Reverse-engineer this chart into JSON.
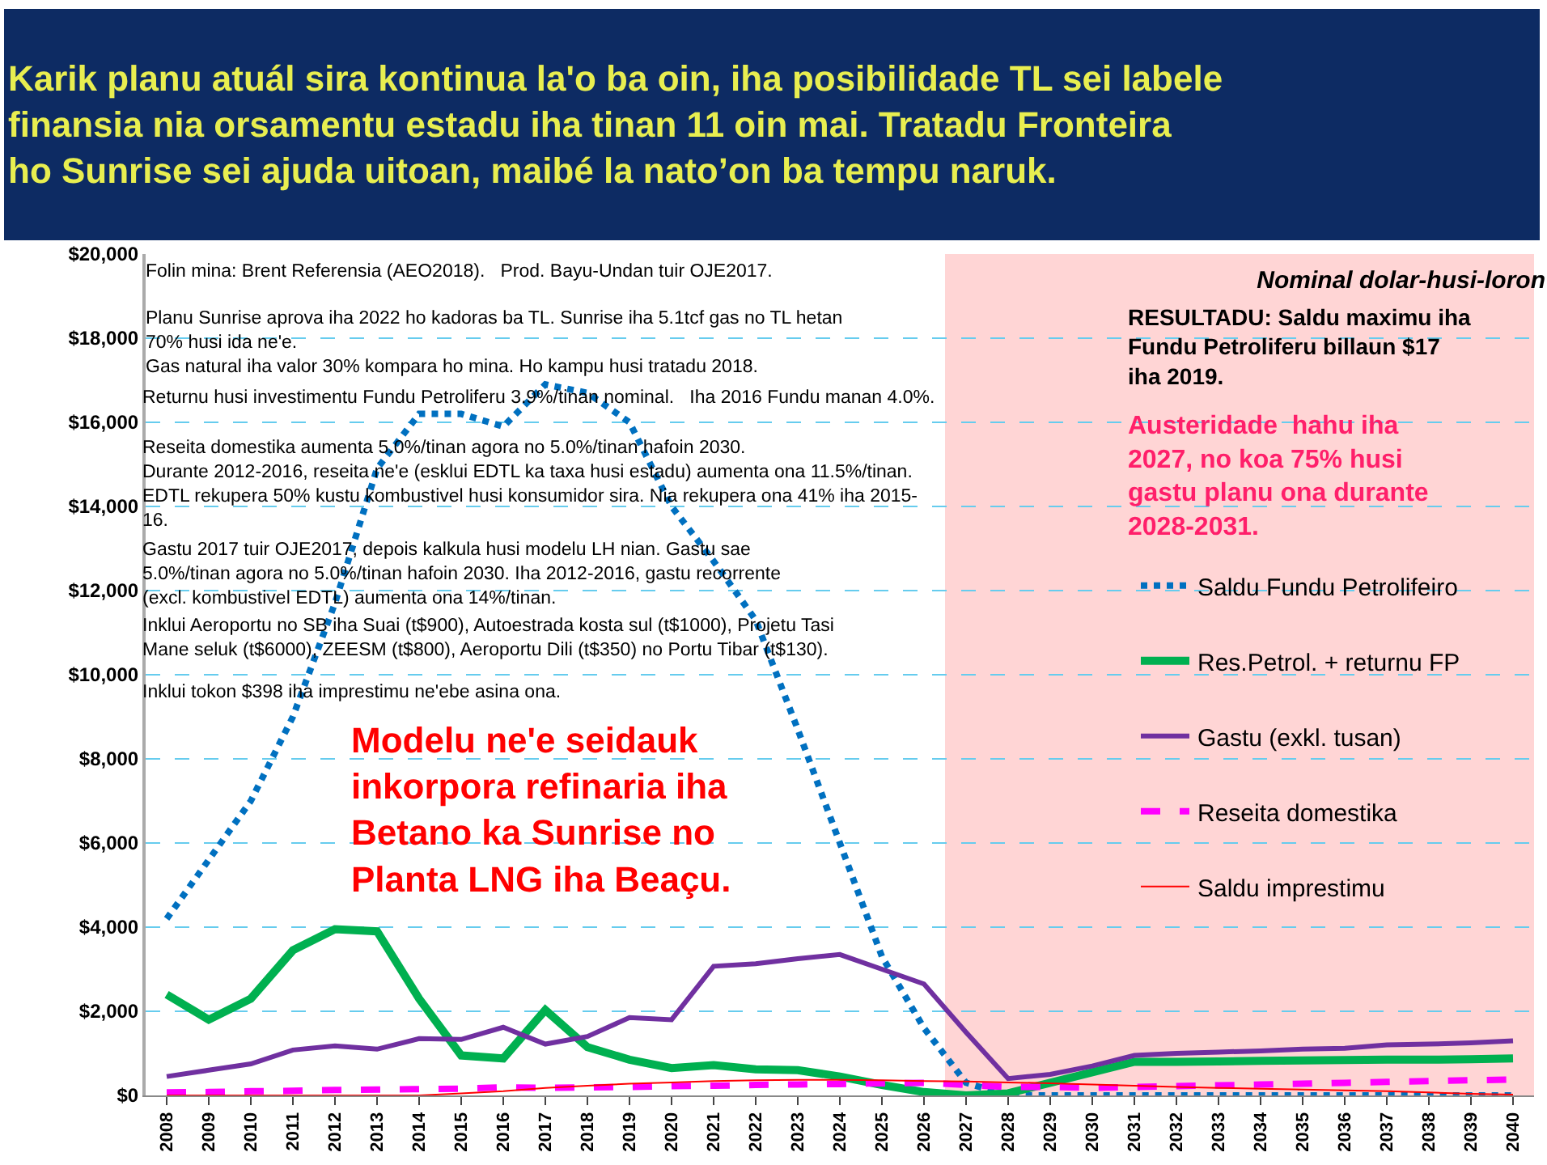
{
  "chart_data": {
    "type": "line",
    "title": "Karik planu atuál sira kontinua la'o ba oin, iha posibilidade TL sei labele\nfinansia nia orsamentu estadu iha tinan 11 oin mai. Tratadu Fronteira\nho Sunrise sei ajuda uitoan, maibé la nato’on ba tempu naruk.",
    "categories": [
      "2008",
      "2009",
      "2010",
      "2011",
      "2012",
      "2013",
      "2014",
      "2015",
      "2016",
      "2017",
      "2018",
      "2019",
      "2020",
      "2021",
      "2022",
      "2023",
      "2024",
      "2025",
      "2026",
      "2027",
      "2028",
      "2029",
      "2030",
      "2031",
      "2032",
      "2033",
      "2034",
      "2035",
      "2036",
      "2037",
      "2038",
      "2039",
      "2040"
    ],
    "series": [
      {
        "name": "Saldu Fundu Petrolifeiro",
        "color": "#0070c0",
        "line_style": "dotted",
        "values": [
          4200,
          5600,
          7000,
          9000,
          11700,
          14900,
          16200,
          16200,
          15900,
          16900,
          16700,
          16000,
          14000,
          12700,
          11300,
          8700,
          6000,
          3300,
          1600,
          300,
          0,
          0,
          0,
          0,
          0,
          0,
          0,
          0,
          0,
          0,
          0,
          0,
          0
        ]
      },
      {
        "name": "Res.Petrol. + returnu FP",
        "color": "#00b050",
        "line_style": "solid",
        "values": [
          2400,
          1800,
          2300,
          3450,
          3950,
          3900,
          2300,
          950,
          880,
          2030,
          1150,
          850,
          650,
          720,
          620,
          600,
          450,
          250,
          80,
          0,
          50,
          300,
          550,
          800,
          800,
          810,
          820,
          830,
          840,
          850,
          850,
          860,
          880
        ]
      },
      {
        "name": "Gastu (exkl. tusan)",
        "color": "#7030a0",
        "line_style": "solid",
        "values": [
          450,
          600,
          750,
          1080,
          1180,
          1100,
          1350,
          1330,
          1620,
          1220,
          1400,
          1850,
          1800,
          3070,
          3130,
          3250,
          3350,
          3000,
          2650,
          1500,
          400,
          500,
          700,
          950,
          1000,
          1030,
          1060,
          1100,
          1120,
          1200,
          1220,
          1250,
          1300
        ]
      },
      {
        "name": "Reseita domestika",
        "color": "#ff00ff",
        "line_style": "dashed",
        "values": [
          70,
          80,
          100,
          110,
          130,
          140,
          150,
          160,
          190,
          180,
          190,
          200,
          220,
          230,
          250,
          260,
          270,
          290,
          300,
          250,
          200,
          200,
          180,
          200,
          220,
          240,
          260,
          280,
          300,
          320,
          340,
          360,
          380
        ]
      },
      {
        "name": "Saldu imprestimu",
        "color": "#ff0000",
        "line_style": "solid",
        "values": [
          0,
          0,
          0,
          0,
          0,
          0,
          0,
          50,
          100,
          180,
          230,
          280,
          310,
          340,
          360,
          370,
          370,
          360,
          340,
          330,
          310,
          290,
          260,
          230,
          200,
          180,
          160,
          140,
          120,
          100,
          70,
          40,
          20
        ]
      }
    ],
    "ylim": [
      0,
      20000
    ],
    "yticks": [
      {
        "value": 0,
        "label": "$0"
      },
      {
        "value": 2000,
        "label": "$2,000"
      },
      {
        "value": 4000,
        "label": "$4,000"
      },
      {
        "value": 6000,
        "label": "$6,000"
      },
      {
        "value": 8000,
        "label": "$8,000"
      },
      {
        "value": 10000,
        "label": "$10,000"
      },
      {
        "value": 12000,
        "label": "$12,000"
      },
      {
        "value": 14000,
        "label": "$14,000"
      },
      {
        "value": 16000,
        "label": "$16,000"
      },
      {
        "value": 18000,
        "label": "$18,000"
      },
      {
        "value": 20000,
        "label": "$20,000"
      }
    ],
    "grid": "y",
    "legend": "right",
    "marker": "none",
    "bands": [
      {
        "axis": "x",
        "from": "2027",
        "to": "2040",
        "color": "#ffd5d5"
      }
    ],
    "annotations": [
      "Folin mina: Brent Referensia (AEO2018).   Prod. Bayu-Undan tuir OJE2017.",
      "Planu Sunrise aprova iha 2022 ho kadoras ba TL. Sunrise iha 5.1tcf gas no TL hetan\n70% husi ida ne'e.\nGas natural iha valor 30% kompara ho mina. Ho kampu husi tratadu 2018.",
      "Returnu husi investimentu Fundu Petroliferu 3.9%/tinan nominal.   Iha 2016 Fundu manan 4.0%.",
      "Reseita domestika aumenta 5.0%/tinan agora no 5.0%/tinan hafoin 2030.\nDurante 2012-2016, reseita ne'e (esklui EDTL ka taxa husi estadu) aumenta ona 11.5%/tinan.\nEDTL rekupera 50% kustu kombustivel husi konsumidor sira. Nia rekupera ona 41% iha 2015-\n16.",
      "Gastu 2017 tuir OJE2017, depois kalkula husi modelu LH nian. Gastu sae\n5.0%/tinan agora no 5.0%/tinan hafoin 2030. Iha 2012-2016, gastu recorrente\n(excl. kombustivel EDTL) aumenta ona 14%/tinan.",
      "Inklui Aeroportu no SB iha Suai (t$900), Autoestrada kosta sul (t$1000), Projetu Tasi\nMane seluk (t$6000), ZEESM (t$800), Aeroportu Dili (t$350) no Portu Tibar (t$130).",
      "Inklui tokon $398 iha imprestimu ne'ebe asina ona.",
      "Modelu ne'e seidauk\ninkorpora refinaria iha\nBetano ka Sunrise no\nPlanta LNG iha Beaçu.",
      "Nominal dolar-husi-loron",
      "RESULTADU: Saldu maximu iha\nFundu Petroliferu billaun $17\niha 2019.",
      "Austeridade  hahu iha\n2027, no koa 75% husi\ngastu planu ona durante\n2028-2031."
    ]
  }
}
